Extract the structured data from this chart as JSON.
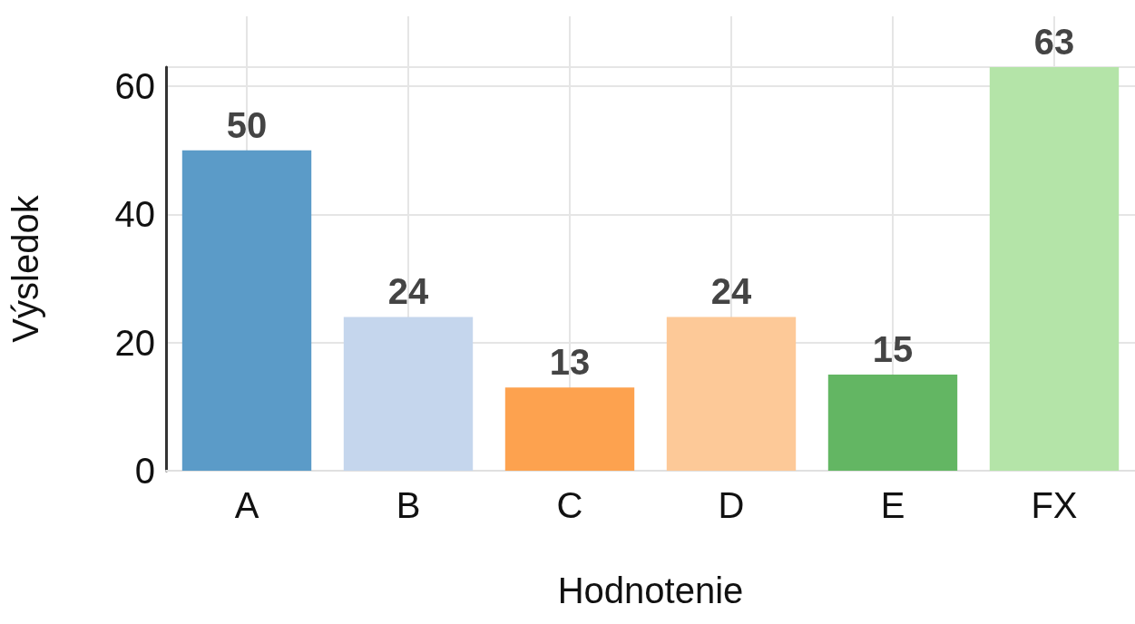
{
  "chart_data": {
    "type": "bar",
    "xlabel": "Hodnotenie",
    "ylabel": "Výsledok",
    "categories": [
      "A",
      "B",
      "C",
      "D",
      "E",
      "FX"
    ],
    "values": [
      50,
      24,
      13,
      24,
      15,
      63
    ],
    "colors": [
      "#5b9bc8",
      "#c5d6ed",
      "#fda24f",
      "#fdc998",
      "#63b663",
      "#b4e4a8"
    ],
    "ylim": [
      0,
      63
    ],
    "yticks": [
      0,
      20,
      40,
      60
    ],
    "grid": true,
    "data_labels": true
  }
}
